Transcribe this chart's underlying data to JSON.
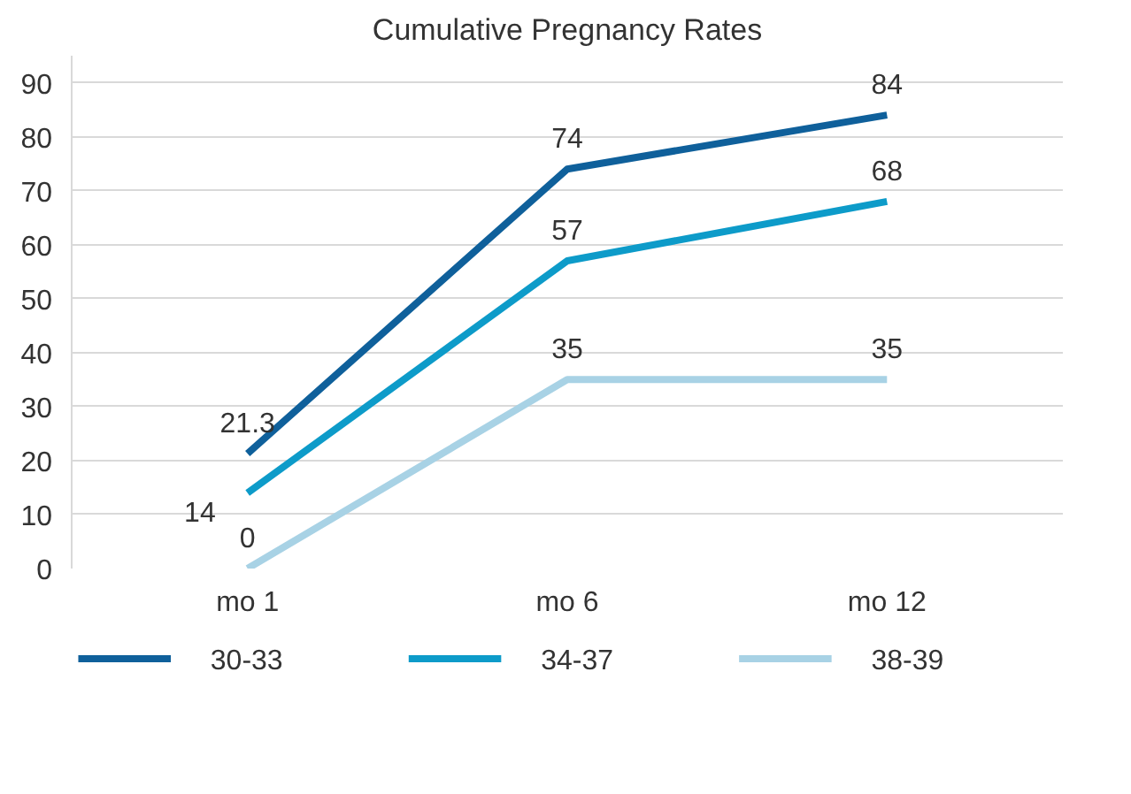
{
  "chart_data": {
    "type": "line",
    "title": "Cumulative Pregnancy Rates",
    "categories": [
      "mo 1",
      "mo 6",
      "mo 12"
    ],
    "series": [
      {
        "name": "30-33",
        "color": "#0f609b",
        "values": [
          21.3,
          74,
          84
        ]
      },
      {
        "name": "34-37",
        "color": "#0d9bc9",
        "values": [
          14,
          57,
          68
        ]
      },
      {
        "name": "38-39",
        "color": "#a8d2e5",
        "values": [
          0,
          35,
          35
        ]
      }
    ],
    "ylim": [
      0,
      95
    ],
    "yticks": [
      0,
      10,
      20,
      30,
      40,
      50,
      60,
      70,
      80,
      90
    ],
    "grid": "y",
    "legend": "bottom",
    "data_labels": true,
    "marker": "none",
    "line_style": "solid"
  }
}
